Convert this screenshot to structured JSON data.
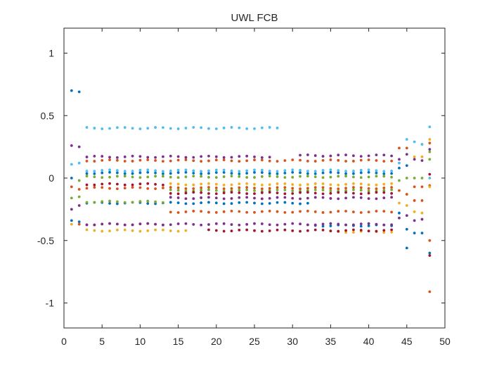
{
  "chart_data": {
    "type": "scatter",
    "title": "UWL FCB",
    "xlabel": "",
    "ylabel": "",
    "xlim": [
      0,
      50
    ],
    "ylim": [
      -1.2,
      1.2
    ],
    "grid": false,
    "xticks": [
      0,
      5,
      10,
      15,
      20,
      25,
      30,
      35,
      40,
      45,
      50
    ],
    "yticks": [
      1,
      0.5,
      0,
      -0.5,
      -1
    ],
    "colors": [
      "#0072BD",
      "#D95319",
      "#EDB120",
      "#7E2F8E",
      "#77AC30",
      "#4DBEEE",
      "#A2142F"
    ],
    "bands": [
      {
        "color": "#0072BD",
        "y": 0.04,
        "x": [
          3,
          43
        ]
      },
      {
        "color": "#0072BD",
        "y": -0.2,
        "x": [
          3,
          32
        ]
      },
      {
        "color": "#0072BD",
        "y": -0.38,
        "x": [
          33,
          43
        ]
      },
      {
        "color": "#D95319",
        "y": 0.14,
        "x": [
          3,
          43
        ]
      },
      {
        "color": "#D95319",
        "y": -0.08,
        "x": [
          3,
          43
        ]
      },
      {
        "color": "#D95319",
        "y": -0.27,
        "x": [
          14,
          43
        ]
      },
      {
        "color": "#D95319",
        "y": -0.37,
        "x": [
          3,
          13
        ]
      },
      {
        "color": "#EDB120",
        "y": -0.05,
        "x": [
          14,
          43
        ]
      },
      {
        "color": "#EDB120",
        "y": -0.42,
        "x": [
          3,
          16
        ]
      },
      {
        "color": "#EDB120",
        "y": -0.43,
        "x": [
          35,
          43
        ]
      },
      {
        "color": "#7E2F8E",
        "y": 0.17,
        "x": [
          3,
          27
        ]
      },
      {
        "color": "#7E2F8E",
        "y": 0.18,
        "x": [
          31,
          43
        ]
      },
      {
        "color": "#7E2F8E",
        "y": -0.37,
        "x": [
          3,
          43
        ]
      },
      {
        "color": "#7E2F8E",
        "y": -0.16,
        "x": [
          14,
          43
        ]
      },
      {
        "color": "#77AC30",
        "y": 0.01,
        "x": [
          3,
          43
        ]
      },
      {
        "color": "#77AC30",
        "y": -0.19,
        "x": [
          3,
          13
        ]
      },
      {
        "color": "#77AC30",
        "y": -0.1,
        "x": [
          14,
          43
        ]
      },
      {
        "color": "#4DBEEE",
        "y": 0.4,
        "x": [
          3,
          28
        ]
      },
      {
        "color": "#4DBEEE",
        "y": 0.06,
        "x": [
          3,
          43
        ]
      },
      {
        "color": "#A2142F",
        "y": -0.42,
        "x": [
          19,
          43
        ]
      },
      {
        "color": "#A2142F",
        "y": -0.12,
        "x": [
          14,
          43
        ]
      },
      {
        "color": "#A2142F",
        "y": -0.05,
        "x": [
          3,
          13
        ]
      }
    ],
    "points": [
      {
        "x": 1,
        "y": 0.7,
        "color": "#0072BD"
      },
      {
        "x": 2,
        "y": 0.69,
        "color": "#0072BD"
      },
      {
        "x": 1,
        "y": 0.26,
        "color": "#7E2F8E"
      },
      {
        "x": 2,
        "y": 0.25,
        "color": "#7E2F8E"
      },
      {
        "x": 1,
        "y": 0.11,
        "color": "#4DBEEE"
      },
      {
        "x": 2,
        "y": 0.12,
        "color": "#4DBEEE"
      },
      {
        "x": 1,
        "y": 0.0,
        "color": "#0072BD"
      },
      {
        "x": 2,
        "y": -0.02,
        "color": "#77AC30"
      },
      {
        "x": 1,
        "y": -0.07,
        "color": "#D95319"
      },
      {
        "x": 2,
        "y": -0.09,
        "color": "#D95319"
      },
      {
        "x": 1,
        "y": -0.16,
        "color": "#77AC30"
      },
      {
        "x": 2,
        "y": -0.15,
        "color": "#77AC30"
      },
      {
        "x": 1,
        "y": -0.25,
        "color": "#7E2F8E"
      },
      {
        "x": 2,
        "y": -0.22,
        "color": "#7E2F8E"
      },
      {
        "x": 1,
        "y": -0.34,
        "color": "#0072BD"
      },
      {
        "x": 2,
        "y": -0.35,
        "color": "#0072BD"
      },
      {
        "x": 1,
        "y": -0.37,
        "color": "#EDB120"
      },
      {
        "x": 2,
        "y": -0.37,
        "color": "#D95319"
      },
      {
        "x": 44,
        "y": 0.24,
        "color": "#D95319"
      },
      {
        "x": 44,
        "y": 0.15,
        "color": "#7E2F8E"
      },
      {
        "x": 44,
        "y": 0.12,
        "color": "#4DBEEE"
      },
      {
        "x": 44,
        "y": 0.08,
        "color": "#0072BD"
      },
      {
        "x": 44,
        "y": -0.02,
        "color": "#77AC30"
      },
      {
        "x": 44,
        "y": -0.1,
        "color": "#D95319"
      },
      {
        "x": 44,
        "y": -0.2,
        "color": "#EDB120"
      },
      {
        "x": 44,
        "y": -0.28,
        "color": "#0072BD"
      },
      {
        "x": 44,
        "y": -0.32,
        "color": "#7E2F8E"
      },
      {
        "x": 45,
        "y": 0.31,
        "color": "#4DBEEE"
      },
      {
        "x": 45,
        "y": 0.24,
        "color": "#D95319"
      },
      {
        "x": 45,
        "y": 0.19,
        "color": "#7E2F8E"
      },
      {
        "x": 45,
        "y": 0.1,
        "color": "#0072BD"
      },
      {
        "x": 45,
        "y": 0.0,
        "color": "#77AC30"
      },
      {
        "x": 45,
        "y": -0.13,
        "color": "#D95319"
      },
      {
        "x": 45,
        "y": -0.22,
        "color": "#EDB120"
      },
      {
        "x": 45,
        "y": -0.3,
        "color": "#7E2F8E"
      },
      {
        "x": 45,
        "y": -0.41,
        "color": "#0072BD"
      },
      {
        "x": 45,
        "y": -0.56,
        "color": "#0072BD"
      },
      {
        "x": 46,
        "y": 0.29,
        "color": "#4DBEEE"
      },
      {
        "x": 46,
        "y": 0.17,
        "color": "#EDB120"
      },
      {
        "x": 46,
        "y": 0.15,
        "color": "#7E2F8E"
      },
      {
        "x": 46,
        "y": 0.0,
        "color": "#77AC30"
      },
      {
        "x": 46,
        "y": -0.07,
        "color": "#D95319"
      },
      {
        "x": 46,
        "y": -0.18,
        "color": "#D95319"
      },
      {
        "x": 46,
        "y": -0.27,
        "color": "#EDB120"
      },
      {
        "x": 46,
        "y": -0.34,
        "color": "#7E2F8E"
      },
      {
        "x": 46,
        "y": -0.44,
        "color": "#0072BD"
      },
      {
        "x": 47,
        "y": 0.27,
        "color": "#4DBEEE"
      },
      {
        "x": 47,
        "y": 0.17,
        "color": "#EDB120"
      },
      {
        "x": 47,
        "y": 0.14,
        "color": "#7E2F8E"
      },
      {
        "x": 47,
        "y": 0.0,
        "color": "#77AC30"
      },
      {
        "x": 47,
        "y": -0.07,
        "color": "#D95319"
      },
      {
        "x": 47,
        "y": -0.18,
        "color": "#D95319"
      },
      {
        "x": 47,
        "y": -0.28,
        "color": "#EDB120"
      },
      {
        "x": 47,
        "y": -0.33,
        "color": "#7E2F8E"
      },
      {
        "x": 47,
        "y": -0.44,
        "color": "#0072BD"
      },
      {
        "x": 48,
        "y": 0.41,
        "color": "#4DBEEE"
      },
      {
        "x": 48,
        "y": 0.31,
        "color": "#EDB120"
      },
      {
        "x": 48,
        "y": 0.28,
        "color": "#D95319"
      },
      {
        "x": 48,
        "y": 0.23,
        "color": "#7E2F8E"
      },
      {
        "x": 48,
        "y": 0.21,
        "color": "#77AC30"
      },
      {
        "x": 48,
        "y": 0.15,
        "color": "#77AC30"
      },
      {
        "x": 48,
        "y": 0.03,
        "color": "#A2142F"
      },
      {
        "x": 48,
        "y": 0.0,
        "color": "#4DBEEE"
      },
      {
        "x": 48,
        "y": -0.06,
        "color": "#D95319"
      },
      {
        "x": 48,
        "y": -0.07,
        "color": "#EDB120"
      },
      {
        "x": 48,
        "y": -0.5,
        "color": "#D95319"
      },
      {
        "x": 48,
        "y": -0.6,
        "color": "#0072BD"
      },
      {
        "x": 48,
        "y": -0.62,
        "color": "#A2142F"
      },
      {
        "x": 48,
        "y": -0.91,
        "color": "#D95319"
      }
    ]
  }
}
